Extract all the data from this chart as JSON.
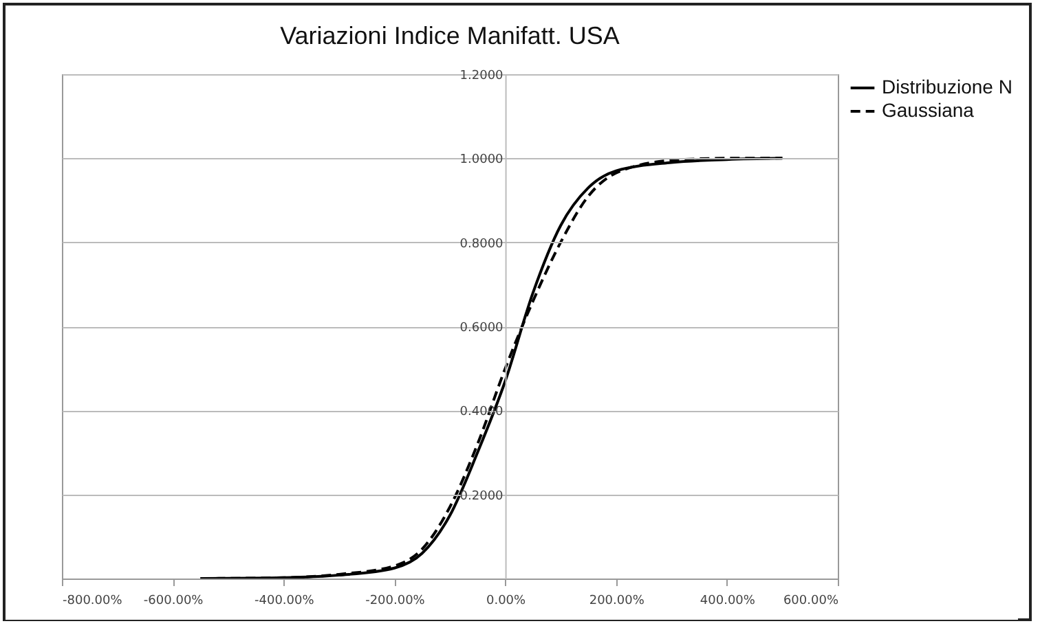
{
  "chart_data": {
    "type": "line",
    "title": "Variazioni Indice Manifatt. USA",
    "x": [
      -550,
      -400,
      -300,
      -200,
      -150,
      -100,
      -50,
      0,
      50,
      100,
      150,
      200,
      300,
      400,
      500
    ],
    "series": [
      {
        "name": "Distribuzione N",
        "color": "#000000",
        "line_style": "solid",
        "values": [
          0,
          0.002,
          0.008,
          0.025,
          0.06,
          0.15,
          0.3,
          0.47,
          0.68,
          0.84,
          0.93,
          0.97,
          0.99,
          0.997,
          1.0
        ]
      },
      {
        "name": "Gaussiana",
        "color": "#000000",
        "line_style": "dashed",
        "values": [
          0,
          0.002,
          0.01,
          0.03,
          0.07,
          0.17,
          0.32,
          0.5,
          0.66,
          0.8,
          0.91,
          0.965,
          0.995,
          1.0,
          1.0
        ]
      }
    ],
    "xlim": [
      -800,
      600
    ],
    "xticks": [
      {
        "value": -800,
        "label": "-800.00%"
      },
      {
        "value": -600,
        "label": "-600.00%"
      },
      {
        "value": -400,
        "label": "-400.00%"
      },
      {
        "value": -200,
        "label": "-200.00%"
      },
      {
        "value": 0,
        "label": "0.00%"
      },
      {
        "value": 200,
        "label": "200.00%"
      },
      {
        "value": 400,
        "label": "400.00%"
      },
      {
        "value": 600,
        "label": "600.00%"
      }
    ],
    "ylim": [
      0,
      1.2
    ],
    "yticks": [
      {
        "value": 0.2,
        "label": "0.2000"
      },
      {
        "value": 0.4,
        "label": "0.4000"
      },
      {
        "value": 0.6,
        "label": "0.6000"
      },
      {
        "value": 0.8,
        "label": "0.8000"
      },
      {
        "value": 1.0,
        "label": "1.0000"
      },
      {
        "value": 1.2,
        "label": "1.2000"
      }
    ],
    "grid": "y",
    "legend": "right"
  }
}
